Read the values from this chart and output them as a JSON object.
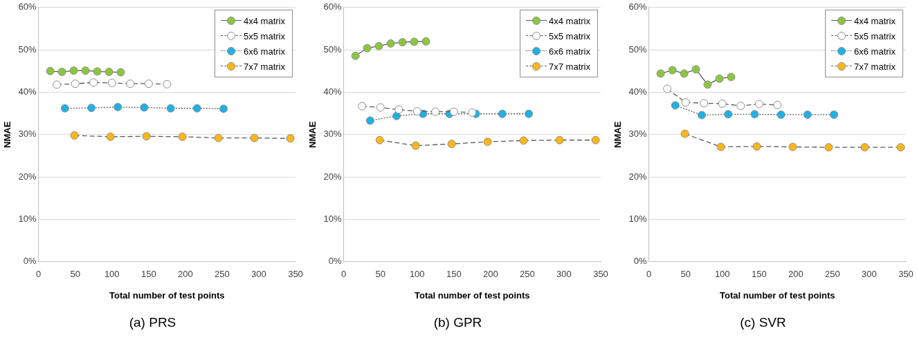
{
  "chart_data": [
    {
      "type": "line",
      "title": "(a) PRS",
      "xlabel": "Total number of test points",
      "ylabel": "NMAE",
      "xlim": [
        0,
        350
      ],
      "xticks": [
        0,
        50,
        100,
        150,
        200,
        250,
        300,
        350
      ],
      "ylim": [
        0,
        60
      ],
      "yticks": [
        {
          "value": 0,
          "label": "0%"
        },
        {
          "value": 10,
          "label": "10%"
        },
        {
          "value": 20,
          "label": "20%"
        },
        {
          "value": 30,
          "label": "30%"
        },
        {
          "value": 40,
          "label": "40%"
        },
        {
          "value": 50,
          "label": "50%"
        },
        {
          "value": 60,
          "label": "60%"
        }
      ],
      "grid": "y",
      "legend": "top right",
      "marker": "circle",
      "series": [
        {
          "name": "4x4 matrix",
          "color": "#8cc63f",
          "line_style": "solid",
          "x": [
            16,
            32,
            48,
            64,
            80,
            96,
            112
          ],
          "values": [
            45.0,
            44.8,
            45.1,
            45.1,
            44.9,
            44.8,
            44.7
          ]
        },
        {
          "name": "5x5 matrix",
          "color": "#ffffff",
          "line_style": "dashed",
          "x": [
            25,
            50,
            75,
            100,
            125,
            150,
            175
          ],
          "values": [
            41.8,
            42.0,
            42.3,
            42.2,
            42.0,
            42.0,
            41.9
          ]
        },
        {
          "name": "6x6 matrix",
          "color": "#1fb1e6",
          "line_style": "dotted",
          "x": [
            36,
            72,
            108,
            144,
            180,
            216,
            252
          ],
          "values": [
            36.2,
            36.3,
            36.5,
            36.4,
            36.2,
            36.2,
            36.1
          ]
        },
        {
          "name": "7x7 matrix",
          "color": "#fbb718",
          "line_style": "dashed",
          "x": [
            49,
            98,
            147,
            196,
            245,
            294,
            343
          ],
          "values": [
            29.8,
            29.5,
            29.6,
            29.5,
            29.2,
            29.2,
            29.1
          ]
        }
      ]
    },
    {
      "type": "line",
      "title": "(b) GPR",
      "xlabel": "Total number of test points",
      "ylabel": "NMAE",
      "xlim": [
        0,
        350
      ],
      "xticks": [
        0,
        50,
        100,
        150,
        200,
        250,
        300,
        350
      ],
      "ylim": [
        0,
        60
      ],
      "yticks": [
        {
          "value": 0,
          "label": "0%"
        },
        {
          "value": 10,
          "label": "10%"
        },
        {
          "value": 20,
          "label": "20%"
        },
        {
          "value": 30,
          "label": "30%"
        },
        {
          "value": 40,
          "label": "40%"
        },
        {
          "value": 50,
          "label": "50%"
        },
        {
          "value": 60,
          "label": "60%"
        }
      ],
      "grid": "y",
      "legend": "top right",
      "marker": "circle",
      "series": [
        {
          "name": "4x4 matrix",
          "color": "#8cc63f",
          "line_style": "solid",
          "x": [
            16,
            32,
            48,
            64,
            80,
            96,
            112
          ],
          "values": [
            48.6,
            50.4,
            50.9,
            51.5,
            51.8,
            51.9,
            52.0
          ]
        },
        {
          "name": "5x5 matrix",
          "color": "#ffffff",
          "line_style": "dashed",
          "x": [
            25,
            50,
            75,
            100,
            125,
            150,
            175
          ],
          "values": [
            36.7,
            36.4,
            35.9,
            35.5,
            35.4,
            35.4,
            35.2
          ]
        },
        {
          "name": "6x6 matrix",
          "color": "#1fb1e6",
          "line_style": "dotted",
          "x": [
            36,
            72,
            108,
            144,
            180,
            216,
            252
          ],
          "values": [
            33.3,
            34.4,
            34.9,
            34.9,
            34.9,
            34.9,
            34.9
          ]
        },
        {
          "name": "7x7 matrix",
          "color": "#fbb718",
          "line_style": "dashed",
          "x": [
            49,
            98,
            147,
            196,
            245,
            294,
            343
          ],
          "values": [
            28.7,
            27.4,
            27.8,
            28.3,
            28.6,
            28.7,
            28.7
          ]
        }
      ]
    },
    {
      "type": "line",
      "title": "(c) SVR",
      "xlabel": "Total number of test points",
      "ylabel": "NMAE",
      "xlim": [
        0,
        350
      ],
      "xticks": [
        0,
        50,
        100,
        150,
        200,
        250,
        300,
        350
      ],
      "ylim": [
        0,
        60
      ],
      "yticks": [
        {
          "value": 0,
          "label": "0%"
        },
        {
          "value": 10,
          "label": "10%"
        },
        {
          "value": 20,
          "label": "20%"
        },
        {
          "value": 30,
          "label": "30%"
        },
        {
          "value": 40,
          "label": "40%"
        },
        {
          "value": 50,
          "label": "50%"
        },
        {
          "value": 60,
          "label": "60%"
        }
      ],
      "grid": "y",
      "legend": "top right",
      "marker": "circle",
      "series": [
        {
          "name": "4x4 matrix",
          "color": "#8cc63f",
          "line_style": "solid",
          "x": [
            16,
            32,
            48,
            64,
            80,
            96,
            112
          ],
          "values": [
            44.4,
            45.2,
            44.4,
            45.4,
            41.8,
            43.2,
            43.6
          ]
        },
        {
          "name": "5x5 matrix",
          "color": "#ffffff",
          "line_style": "dashed",
          "x": [
            25,
            50,
            75,
            100,
            125,
            150,
            175
          ],
          "values": [
            40.8,
            37.6,
            37.4,
            37.3,
            36.8,
            37.2,
            37.0
          ]
        },
        {
          "name": "6x6 matrix",
          "color": "#1fb1e6",
          "line_style": "dotted",
          "x": [
            36,
            72,
            108,
            144,
            180,
            216,
            252
          ],
          "values": [
            36.9,
            34.6,
            34.8,
            34.8,
            34.7,
            34.7,
            34.7
          ]
        },
        {
          "name": "7x7 matrix",
          "color": "#fbb718",
          "line_style": "dashed",
          "x": [
            49,
            98,
            147,
            196,
            245,
            294,
            343
          ],
          "values": [
            30.2,
            27.1,
            27.2,
            27.1,
            27.0,
            27.0,
            27.0
          ]
        }
      ]
    }
  ]
}
